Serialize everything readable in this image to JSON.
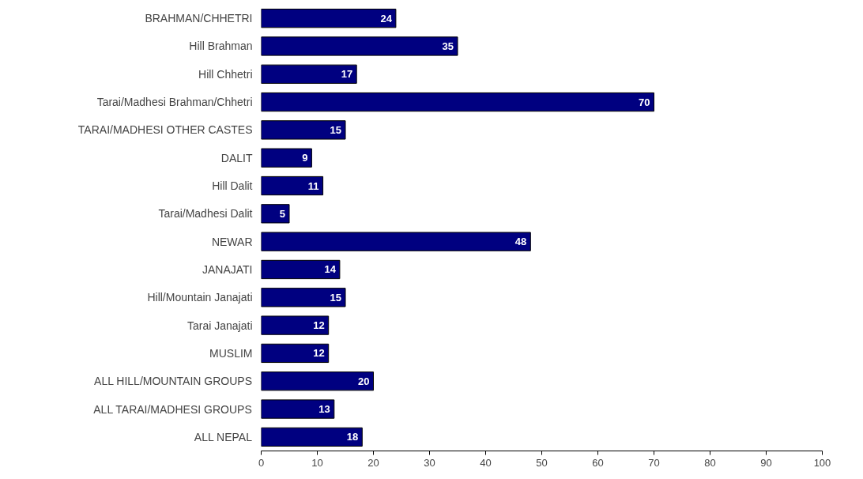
{
  "chart_data": {
    "type": "bar",
    "orientation": "horizontal",
    "categories": [
      "BRAHMAN/CHHETRI",
      "Hill Brahman",
      "Hill Chhetri",
      "Tarai/Madhesi Brahman/Chhetri",
      "TARAI/MADHESI OTHER CASTES",
      "DALIT",
      "Hill Dalit",
      "Tarai/Madhesi Dalit",
      "NEWAR",
      "JANAJATI",
      "Hill/Mountain Janajati",
      "Tarai Janajati",
      "MUSLIM",
      "ALL HILL/MOUNTAIN GROUPS",
      "ALL TARAI/MADHESI GROUPS",
      "ALL NEPAL"
    ],
    "values": [
      24,
      35,
      17,
      70,
      15,
      9,
      11,
      5,
      48,
      14,
      15,
      12,
      12,
      20,
      13,
      18
    ],
    "color": "#000080",
    "xlim": [
      0,
      100
    ],
    "xticks": [
      0,
      10,
      20,
      30,
      40,
      50,
      60,
      70,
      80,
      90,
      100
    ],
    "grid": false,
    "data_labels": true
  }
}
